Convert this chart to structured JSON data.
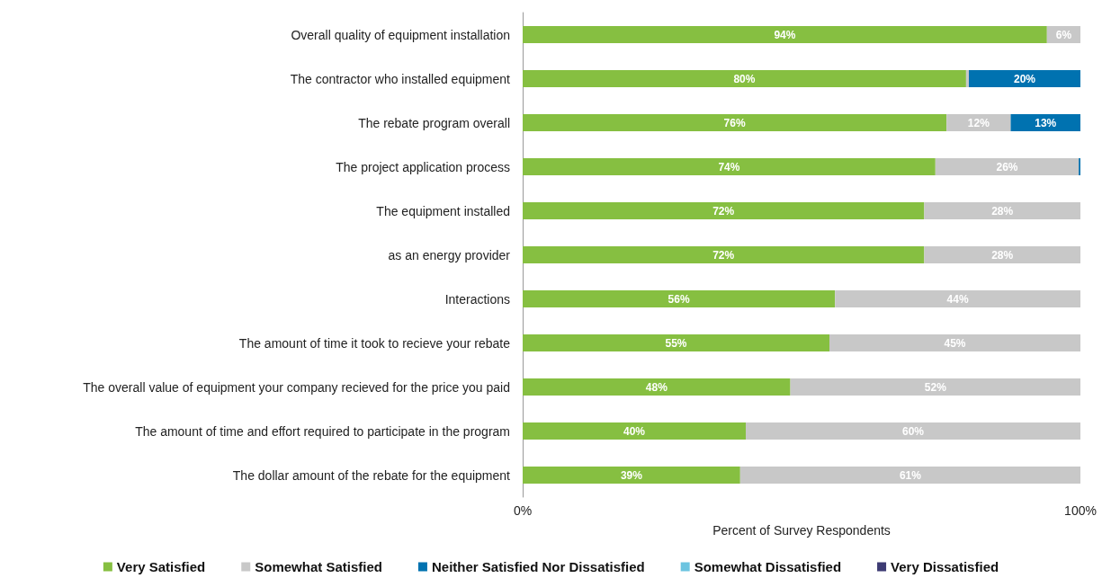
{
  "chart_data": {
    "type": "bar",
    "orientation": "horizontal",
    "stacked": true,
    "xlabel": "Percent of Survey Respondents",
    "categories": [
      "Overall quality of equipment installation",
      "The contractor who installed equipment",
      "The rebate program overall",
      "The project application process",
      "The equipment installed",
      "as an energy provider",
      "Interactions",
      "The amount of time it took to recieve your rebate",
      "The overall value of equipment your company recieved for the price you paid",
      "The amount of time and effort required to participate in the program",
      "The dollar amount of the rebate for the equipment"
    ],
    "series": [
      {
        "name": "Very Satisfied",
        "color": "#86bf41",
        "values": [
          94,
          79.5,
          76,
          74,
          72,
          72,
          56,
          55,
          48,
          40,
          39
        ],
        "value_labels": [
          "94%",
          "80%",
          "76%",
          "74%",
          "72%",
          "72%",
          "56%",
          "55%",
          "48%",
          "40%",
          "39%"
        ]
      },
      {
        "name": "Somewhat Satisfied",
        "color": "#c8c8c8",
        "values": [
          6,
          0.5,
          11.5,
          25.7,
          28,
          28,
          44,
          45,
          52,
          60,
          61
        ],
        "value_labels": [
          "6%",
          null,
          "12%",
          "26%",
          "28%",
          "28%",
          "44%",
          "45%",
          "52%",
          "60%",
          "61%"
        ]
      },
      {
        "name": "Neither Satisfied Nor Dissatisfied",
        "color": "#0072b0",
        "values": [
          null,
          20,
          12.5,
          0.3,
          null,
          null,
          null,
          null,
          null,
          null,
          null
        ],
        "value_labels": [
          null,
          "20%",
          "13%",
          null,
          null,
          null,
          null,
          null,
          null,
          null,
          null
        ]
      },
      {
        "name": "Somewhat Dissatisfied",
        "color": "#6cc4e0",
        "values": [
          null,
          null,
          null,
          null,
          null,
          null,
          null,
          null,
          null,
          null,
          null
        ]
      },
      {
        "name": "Very Dissatisfied",
        "color": "#3d3b73",
        "values": [
          null,
          null,
          null,
          null,
          null,
          null,
          null,
          null,
          null,
          null,
          null
        ]
      }
    ],
    "xlim": [
      0,
      100
    ],
    "xticks": [
      {
        "value": 0,
        "label": "0%"
      },
      {
        "value": 100,
        "label": "100%"
      }
    ],
    "grid": false,
    "legend": "bottom"
  }
}
